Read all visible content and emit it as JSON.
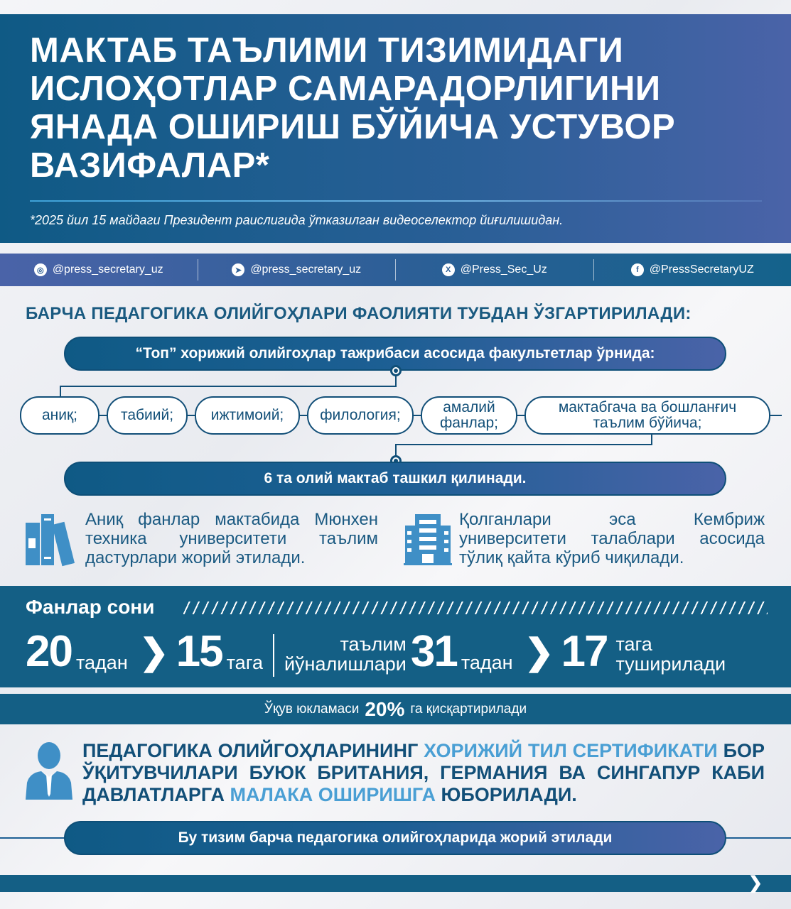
{
  "header": {
    "title": "МАКТАБ ТАЪЛИМИ ТИЗИМИДАГИ ИСЛОҲОТЛАР САМАРАДОРЛИГИНИ ЯНАДА ОШИРИШ БЎЙИЧА УСТУВОР ВАЗИФАЛАР*",
    "subtitle": "*2025 йил 15 майдаги Президент раислигида ўтказилган видеоселектор йиғилишидан."
  },
  "social": [
    {
      "icon": "instagram-icon",
      "handle": "@press_secretary_uz"
    },
    {
      "icon": "telegram-icon",
      "handle": "@press_secretary_uz"
    },
    {
      "icon": "x-icon",
      "handle": "@Press_Sec_Uz"
    },
    {
      "icon": "facebook-icon",
      "handle": "@PressSecretaryUZ"
    }
  ],
  "heading": "БАРЧА ПЕДАГОГИКА ОЛИЙГОҲЛАРИ ФАОЛИЯТИ ТУБДАН ЎЗГАРТИРИЛАДИ:",
  "pill_top": "“Топ” хорижий олийгоҳлар тажрибаси асосида факультетлар ўрнида:",
  "areas": [
    "аниқ;",
    "табиий;",
    "ижтимоий;",
    "филология;",
    "амалий фанлар;",
    "мактабгача ва бошланғич таълим бўйича;"
  ],
  "pill_mid": "6 та олий мактаб ташкил қилинади.",
  "col_left": "Аниқ фанлар мактабида Мюнхен техника университети таълим дастурлари жорий этилади.",
  "col_right": "Қолганлари эса Кембриж университети талаблари асосида тўлиқ қайта кўриб чиқилади.",
  "stats": {
    "title": "Фанлар сони",
    "from1": "20",
    "from1_unit": "тадан",
    "to1": "15",
    "to1_unit": "тага",
    "label2_a": "таълим",
    "label2_b": "йўналишлари",
    "from2": "31",
    "from2_unit": "тадан",
    "to2": "17",
    "to2_unit_a": "тага",
    "to2_unit_b": "туширилади"
  },
  "load": {
    "pre": "Ўқув юкламаси",
    "value": "20%",
    "post": "га қисқартирилади"
  },
  "teachers": {
    "p1": "ПЕДАГОГИКА ОЛИЙГОҲЛАРИНИНГ ",
    "h1": "ХОРИЖИЙ ТИЛ СЕРТИФИКАТИ",
    "p2": " БОР ЎҚИТУВЧИЛАРИ БУЮК БРИТАНИЯ, ГЕРМАНИЯ ВА СИНГАПУР КАБИ ДАВЛАТЛАРГА ",
    "h2": "МАЛАКА ОШИРИШГА",
    "p3": " ЮБОРИЛАДИ."
  },
  "pill_bottom": "Бу тизим барча педагогика олийгоҳларида жорий этилади",
  "colors": {
    "primary": "#145f85",
    "accent": "#4a63a8",
    "highlight": "#4a9fd4"
  }
}
